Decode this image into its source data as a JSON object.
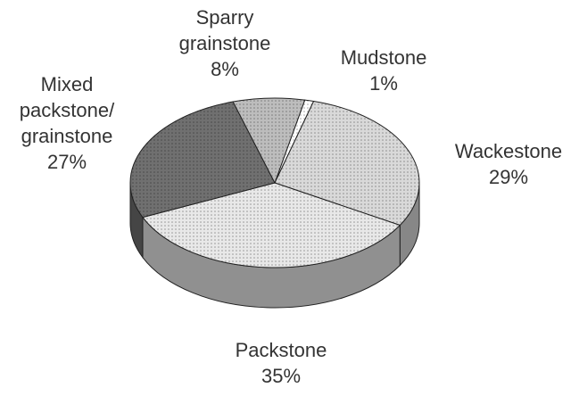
{
  "chart_data": {
    "type": "pie3d",
    "categories": [
      "Mudstone",
      "Wackestone",
      "Packstone",
      "Mixed packstone/ grainstone",
      "Sparry grainstone"
    ],
    "values": [
      1,
      29,
      35,
      27,
      8
    ],
    "value_labels": [
      "1%",
      "29%",
      "35%",
      "27%",
      "8%"
    ],
    "colors": [
      "#ffffff",
      "#d9d9d9",
      "#e8e8e8",
      "#707070",
      "#bdbdbd"
    ]
  }
}
